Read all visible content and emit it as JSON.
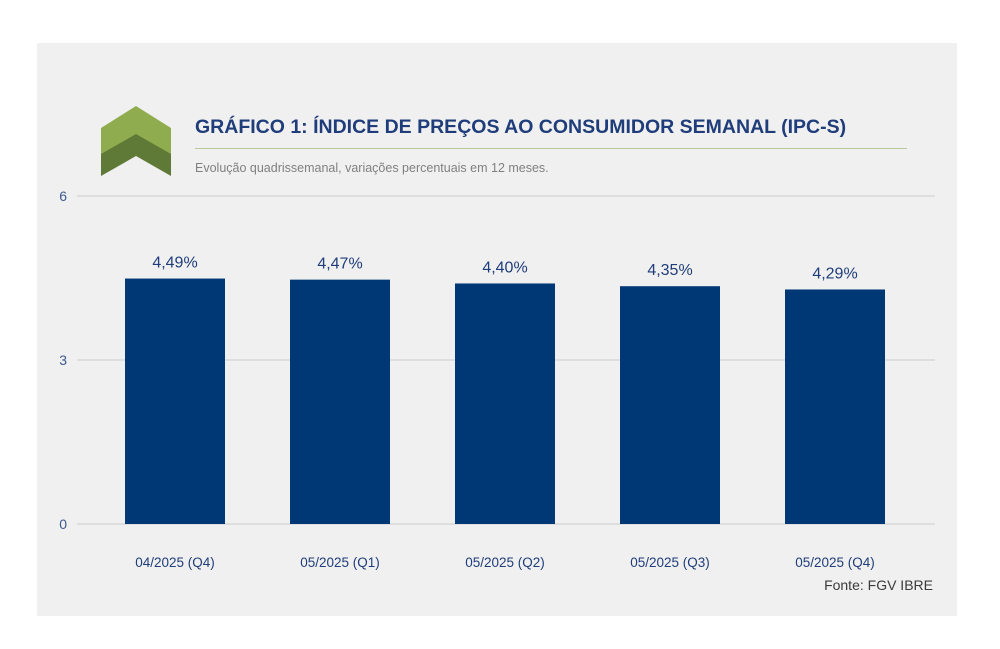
{
  "title": "GRÁFICO 1: ÍNDICE DE PREÇOS AO CONSUMIDOR SEMANAL (IPC-S)",
  "subtitle": "Evolução quadrissemanal, variações percentuais em 12 meses.",
  "source": "Fonte: FGV IBRE",
  "logo": {
    "icon": "double-chevron-up-icon",
    "colors": [
      "#8fad4f",
      "#5f7a36"
    ]
  },
  "chart_data": {
    "type": "bar",
    "categories": [
      "04/2025 (Q4)",
      "05/2025 (Q1)",
      "05/2025 (Q2)",
      "05/2025 (Q3)",
      "05/2025 (Q4)"
    ],
    "values": [
      4.49,
      4.47,
      4.4,
      4.35,
      4.29
    ],
    "data_labels": [
      "4,49%",
      "4,47%",
      "4,40%",
      "4,35%",
      "4,29%"
    ],
    "ylim": [
      0,
      6
    ],
    "yticks": [
      0,
      3,
      6
    ],
    "grid": true,
    "bar_color": "#003876"
  }
}
